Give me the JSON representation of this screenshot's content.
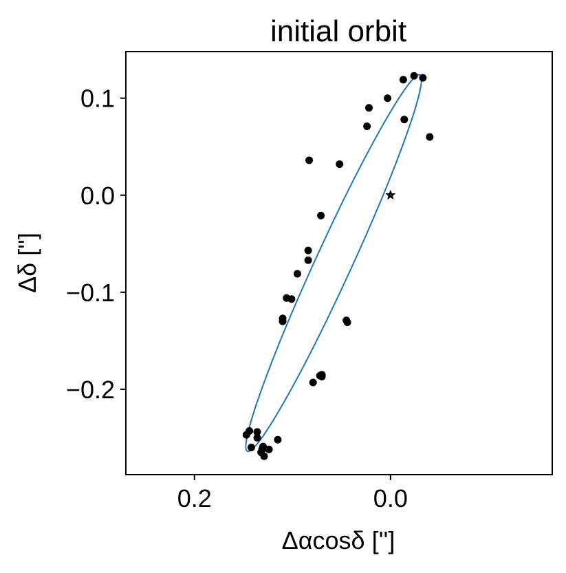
{
  "chart_data": {
    "type": "scatter",
    "title": "initial orbit",
    "xlabel": "Δαcosδ ['']",
    "ylabel": "Δδ ['']",
    "xlim": [
      0.27,
      -0.165
    ],
    "ylim": [
      -0.288,
      0.148
    ],
    "x_inverted": true,
    "xticks": [
      {
        "value": 0.2,
        "label": "0.2"
      },
      {
        "value": 0.0,
        "label": "0.0"
      }
    ],
    "yticks": [
      {
        "value": 0.1,
        "label": "0.1"
      },
      {
        "value": 0.0,
        "label": "0.0"
      },
      {
        "value": -0.1,
        "label": "−0.1"
      },
      {
        "value": -0.2,
        "label": "−0.2"
      }
    ],
    "grid": false,
    "series": [
      {
        "kind": "points",
        "color": "#000000",
        "marker": "circle",
        "points": [
          [
            -0.013,
            0.119
          ],
          [
            -0.024,
            0.123
          ],
          [
            -0.033,
            0.121
          ],
          [
            0.003,
            0.1
          ],
          [
            0.022,
            0.09
          ],
          [
            -0.014,
            0.078
          ],
          [
            0.024,
            0.071
          ],
          [
            -0.04,
            0.06
          ],
          [
            0.083,
            0.036
          ],
          [
            0.052,
            0.032
          ],
          [
            0.071,
            -0.021
          ],
          [
            0.084,
            -0.057
          ],
          [
            0.084,
            -0.067
          ],
          [
            0.095,
            -0.081
          ],
          [
            0.106,
            -0.106
          ],
          [
            0.101,
            -0.107
          ],
          [
            0.11,
            -0.127
          ],
          [
            0.11,
            -0.13
          ],
          [
            0.045,
            -0.129
          ],
          [
            0.044,
            -0.131
          ],
          [
            0.072,
            -0.186
          ],
          [
            0.07,
            -0.187
          ],
          [
            0.07,
            -0.185
          ],
          [
            0.079,
            -0.193
          ],
          [
            0.144,
            -0.243
          ],
          [
            0.147,
            -0.247
          ],
          [
            0.136,
            -0.244
          ],
          [
            0.136,
            -0.25
          ],
          [
            0.115,
            -0.252
          ],
          [
            0.142,
            -0.26
          ],
          [
            0.131,
            -0.262
          ],
          [
            0.13,
            -0.259
          ],
          [
            0.124,
            -0.262
          ],
          [
            0.132,
            -0.265
          ],
          [
            0.129,
            -0.269
          ]
        ]
      },
      {
        "kind": "star",
        "color": "#000000",
        "points": [
          [
            0.0,
            0.0
          ]
        ]
      },
      {
        "kind": "ellipse",
        "color": "#1f77b4",
        "center": [
          0.058,
          -0.07
        ],
        "ends": [
          [
            -0.03,
            0.124
          ],
          [
            0.146,
            -0.264
          ]
        ],
        "semi_minor": 0.0185
      }
    ]
  }
}
